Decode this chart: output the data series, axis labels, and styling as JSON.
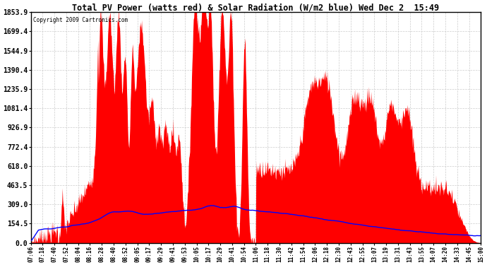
{
  "title": "Total PV Power (watts red) & Solar Radiation (W/m2 blue) Wed Dec 2  15:49",
  "copyright": "Copyright 2009 Cartronics.com",
  "yticks": [
    0.0,
    154.5,
    309.0,
    463.5,
    618.0,
    772.4,
    926.9,
    1081.4,
    1235.9,
    1390.4,
    1544.9,
    1699.4,
    1853.9
  ],
  "ymax": 1853.9,
  "ymin": 0.0,
  "bg_color": "#ffffff",
  "grid_color": "#cccccc",
  "fill_color": "#ff0000",
  "line_color": "#0000ff",
  "xtick_labels": [
    "07:06",
    "07:18",
    "07:40",
    "07:52",
    "08:04",
    "08:16",
    "08:28",
    "08:40",
    "08:52",
    "09:05",
    "09:17",
    "09:29",
    "09:41",
    "09:53",
    "10:05",
    "10:17",
    "10:29",
    "10:41",
    "10:54",
    "11:06",
    "11:18",
    "11:30",
    "11:42",
    "11:54",
    "12:06",
    "12:18",
    "12:30",
    "12:43",
    "12:55",
    "13:07",
    "13:19",
    "13:31",
    "13:43",
    "13:55",
    "14:07",
    "14:20",
    "14:33",
    "14:45",
    "15:00"
  ]
}
